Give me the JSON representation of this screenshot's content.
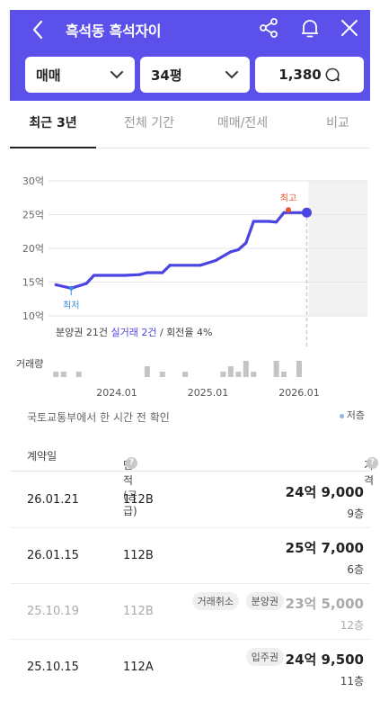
{
  "header": {
    "title": "흑석동 흑석자이",
    "deal_type": "매매",
    "size": "34평",
    "search_count": "1,380"
  },
  "tabs": [
    {
      "label": "최근 3년",
      "active": true
    },
    {
      "label": "전체 기간",
      "active": false
    },
    {
      "label": "매매/전세",
      "active": false
    },
    {
      "label": "비교",
      "active": false
    }
  ],
  "chart_data": {
    "type": "line",
    "y_axis": {
      "unit": "억",
      "ticks": [
        "30억",
        "25억",
        "20억",
        "15억",
        "10억"
      ],
      "range": [
        10,
        30
      ]
    },
    "x_axis": {
      "ticks": [
        "2024.01",
        "2025.01",
        "2026.01"
      ]
    },
    "series": [
      {
        "name": "",
        "points": [
          {
            "x": "2023.05",
            "y": 14.6
          },
          {
            "x": "2023.07",
            "y": 14.1
          },
          {
            "x": "2023.09",
            "y": 14.8
          },
          {
            "x": "2023.10",
            "y": 16.0
          },
          {
            "x": "2024.02",
            "y": 16.0
          },
          {
            "x": "2024.04",
            "y": 16.1
          },
          {
            "x": "2024.05",
            "y": 16.4
          },
          {
            "x": "2024.07",
            "y": 16.4
          },
          {
            "x": "2024.08",
            "y": 17.5
          },
          {
            "x": "2024.12",
            "y": 17.5
          },
          {
            "x": "2025.02",
            "y": 18.2
          },
          {
            "x": "2025.04",
            "y": 19.5
          },
          {
            "x": "2025.05",
            "y": 19.8
          },
          {
            "x": "2025.06",
            "y": 20.8
          },
          {
            "x": "2025.07",
            "y": 24.0
          },
          {
            "x": "2025.09",
            "y": 24.0
          },
          {
            "x": "2025.10",
            "y": 23.9
          },
          {
            "x": "2025.11",
            "y": 25.3
          },
          {
            "x": "2026.01",
            "y": 25.3
          },
          {
            "x": "2026.02",
            "y": 25.3
          }
        ]
      }
    ],
    "annotations": {
      "max_label": "최고",
      "min_label": "최저"
    },
    "volume_label": "거래량",
    "volume": [
      {
        "x": "2023.05",
        "v": 1
      },
      {
        "x": "2023.06",
        "v": 1
      },
      {
        "x": "2023.08",
        "v": 1
      },
      {
        "x": "2024.05",
        "v": 2
      },
      {
        "x": "2024.07",
        "v": 1
      },
      {
        "x": "2024.10",
        "v": 1
      },
      {
        "x": "2025.03",
        "v": 1
      },
      {
        "x": "2025.04",
        "v": 2
      },
      {
        "x": "2025.05",
        "v": 1
      },
      {
        "x": "2025.06",
        "v": 3
      },
      {
        "x": "2025.07",
        "v": 1
      },
      {
        "x": "2025.10",
        "v": 3
      },
      {
        "x": "2025.11",
        "v": 1
      },
      {
        "x": "2026.01",
        "v": 3
      }
    ],
    "legend": {
      "prefix": "분양권 21건 ",
      "highlight": "실거래 2건",
      "suffix": " / 회전율 4%"
    }
  },
  "source_note": "국토교통부에서 한 시간 전 확인",
  "low_floor_legend": "저층",
  "table": {
    "headers": {
      "date": "계약일",
      "area": "면적(공급)",
      "price": "가격"
    },
    "rows": [
      {
        "date": "26.01.21",
        "area": "112B",
        "price": "24억 9,000",
        "floor": "9층",
        "badges": [],
        "cancelled": false
      },
      {
        "date": "26.01.15",
        "area": "112B",
        "price": "25억 7,000",
        "floor": "6층",
        "badges": [],
        "cancelled": false
      },
      {
        "date": "25.10.19",
        "area": "112B",
        "price": "23억 5,000",
        "floor": "12층",
        "badges": [
          "거래취소",
          "분양권"
        ],
        "cancelled": true
      },
      {
        "date": "25.10.15",
        "area": "112A",
        "price": "24억 9,500",
        "floor": "11층",
        "badges": [
          "입주권"
        ],
        "cancelled": false
      }
    ]
  },
  "colors": {
    "brand": "#5b50ea",
    "line": "#4c44e0",
    "max_marker": "#e8552d"
  }
}
